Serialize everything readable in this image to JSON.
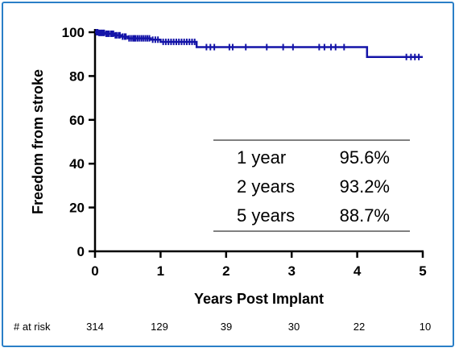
{
  "chart_data": {
    "type": "line",
    "ylabel": "Freedom from stroke",
    "xlabel": "Years Post Implant",
    "xlim": [
      0,
      5
    ],
    "ylim": [
      0,
      100
    ],
    "x_ticks": [
      0,
      1,
      2,
      3,
      4,
      5
    ],
    "y_ticks": [
      0,
      20,
      40,
      60,
      80,
      100
    ],
    "line_color": "#1414a8",
    "series": [
      {
        "step_points": [
          [
            0,
            100
          ],
          [
            0.05,
            99.7
          ],
          [
            0.15,
            99.3
          ],
          [
            0.3,
            98.6
          ],
          [
            0.4,
            98.0
          ],
          [
            0.5,
            97.2
          ],
          [
            0.85,
            96.6
          ],
          [
            1.0,
            95.6
          ],
          [
            1.55,
            93.2
          ],
          [
            4.15,
            88.7
          ],
          [
            5.0,
            88.7
          ]
        ],
        "censor_x": [
          0.02,
          0.04,
          0.06,
          0.08,
          0.1,
          0.12,
          0.14,
          0.17,
          0.19,
          0.21,
          0.24,
          0.26,
          0.28,
          0.31,
          0.33,
          0.36,
          0.38,
          0.42,
          0.45,
          0.47,
          0.52,
          0.55,
          0.58,
          0.6,
          0.62,
          0.65,
          0.68,
          0.71,
          0.74,
          0.77,
          0.8,
          0.83,
          0.88,
          0.92,
          0.96,
          1.04,
          1.08,
          1.12,
          1.16,
          1.2,
          1.24,
          1.28,
          1.32,
          1.36,
          1.4,
          1.44,
          1.48,
          1.52,
          1.7,
          1.76,
          1.82,
          2.05,
          2.1,
          2.3,
          2.62,
          2.87,
          3.02,
          3.42,
          3.5,
          3.6,
          3.67,
          3.8,
          4.75,
          4.82,
          4.88,
          4.94
        ]
      }
    ],
    "table": {
      "rows": [
        {
          "label": "1 year",
          "value": "95.6%"
        },
        {
          "label": "2 years",
          "value": "93.2%"
        },
        {
          "label": "5 years",
          "value": "88.7%"
        }
      ]
    },
    "at_risk": {
      "label": "# at risk",
      "values": [
        "314",
        "129",
        "39",
        "30",
        "22",
        "10"
      ]
    }
  }
}
